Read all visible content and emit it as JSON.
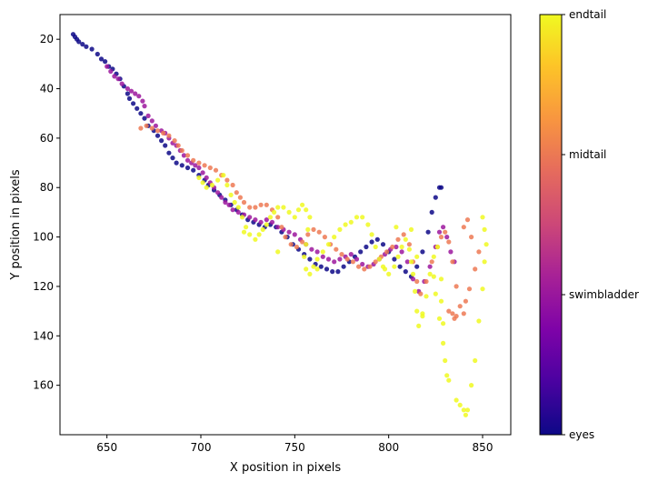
{
  "chart_data": {
    "type": "scatter",
    "title": "",
    "xlabel": "X position in pixels",
    "ylabel": "Y position in pixels",
    "xlim": [
      625,
      865
    ],
    "ylim": [
      180,
      10
    ],
    "y_inverted": true,
    "grid": false,
    "x_ticks": [
      650,
      700,
      750,
      800,
      850
    ],
    "y_ticks": [
      20,
      40,
      60,
      80,
      100,
      120,
      140,
      160
    ],
    "colormap": "plasma",
    "colorbar": {
      "labels": [
        "eyes",
        "swimbladder",
        "midtail",
        "endtail"
      ],
      "values": [
        0,
        1,
        2,
        3
      ]
    },
    "series": [
      {
        "name": "eyes",
        "color": "#0d0887",
        "points": [
          [
            632,
            18
          ],
          [
            633,
            19
          ],
          [
            634,
            20
          ],
          [
            635,
            21
          ],
          [
            637,
            22
          ],
          [
            639,
            23
          ],
          [
            642,
            24
          ],
          [
            645,
            26
          ],
          [
            647,
            28
          ],
          [
            649,
            29
          ],
          [
            651,
            31
          ],
          [
            653,
            32
          ],
          [
            655,
            34
          ],
          [
            657,
            36
          ],
          [
            659,
            39
          ],
          [
            661,
            42
          ],
          [
            662,
            44
          ],
          [
            664,
            46
          ],
          [
            666,
            48
          ],
          [
            668,
            50
          ],
          [
            670,
            52
          ],
          [
            672,
            55
          ],
          [
            675,
            57
          ],
          [
            677,
            59
          ],
          [
            679,
            61
          ],
          [
            681,
            63
          ],
          [
            683,
            66
          ],
          [
            685,
            68
          ],
          [
            687,
            70
          ],
          [
            690,
            71
          ],
          [
            693,
            72
          ],
          [
            696,
            73
          ],
          [
            699,
            75
          ],
          [
            702,
            77
          ],
          [
            704,
            79
          ],
          [
            707,
            81
          ],
          [
            710,
            83
          ],
          [
            713,
            85
          ],
          [
            716,
            87
          ],
          [
            719,
            89
          ],
          [
            722,
            91
          ],
          [
            725,
            93
          ],
          [
            728,
            94
          ],
          [
            731,
            95
          ],
          [
            734,
            96
          ],
          [
            737,
            95
          ],
          [
            740,
            96
          ],
          [
            743,
            98
          ],
          [
            746,
            100
          ],
          [
            749,
            103
          ],
          [
            752,
            105
          ],
          [
            755,
            107
          ],
          [
            758,
            109
          ],
          [
            761,
            111
          ],
          [
            764,
            112
          ],
          [
            767,
            113
          ],
          [
            770,
            114
          ],
          [
            773,
            114
          ],
          [
            776,
            112
          ],
          [
            779,
            110
          ],
          [
            782,
            108
          ],
          [
            785,
            106
          ],
          [
            788,
            104
          ],
          [
            791,
            102
          ],
          [
            794,
            101
          ],
          [
            797,
            103
          ],
          [
            800,
            106
          ],
          [
            803,
            109
          ],
          [
            806,
            112
          ],
          [
            809,
            114
          ],
          [
            812,
            116
          ],
          [
            815,
            112
          ],
          [
            818,
            106
          ],
          [
            821,
            98
          ],
          [
            823,
            90
          ],
          [
            825,
            84
          ],
          [
            827,
            80
          ],
          [
            828,
            80
          ]
        ]
      },
      {
        "name": "swimbladder",
        "color": "#9c179e",
        "points": [
          [
            650,
            31
          ],
          [
            652,
            33
          ],
          [
            654,
            35
          ],
          [
            656,
            36
          ],
          [
            658,
            38
          ],
          [
            661,
            40
          ],
          [
            663,
            41
          ],
          [
            665,
            42
          ],
          [
            667,
            43
          ],
          [
            669,
            45
          ],
          [
            670,
            47
          ],
          [
            672,
            51
          ],
          [
            674,
            53
          ],
          [
            676,
            55
          ],
          [
            679,
            57
          ],
          [
            681,
            58
          ],
          [
            683,
            60
          ],
          [
            685,
            62
          ],
          [
            687,
            63
          ],
          [
            689,
            65
          ],
          [
            691,
            67
          ],
          [
            693,
            69
          ],
          [
            695,
            70
          ],
          [
            697,
            71
          ],
          [
            699,
            72
          ],
          [
            701,
            74
          ],
          [
            703,
            76
          ],
          [
            705,
            78
          ],
          [
            707,
            80
          ],
          [
            709,
            82
          ],
          [
            711,
            84
          ],
          [
            713,
            86
          ],
          [
            715,
            87
          ],
          [
            717,
            89
          ],
          [
            720,
            90
          ],
          [
            723,
            91
          ],
          [
            726,
            92
          ],
          [
            729,
            93
          ],
          [
            732,
            94
          ],
          [
            735,
            93
          ],
          [
            738,
            94
          ],
          [
            741,
            96
          ],
          [
            744,
            97
          ],
          [
            747,
            98
          ],
          [
            750,
            99
          ],
          [
            753,
            101
          ],
          [
            756,
            103
          ],
          [
            759,
            105
          ],
          [
            762,
            106
          ],
          [
            765,
            108
          ],
          [
            768,
            109
          ],
          [
            771,
            110
          ],
          [
            774,
            109
          ],
          [
            777,
            108
          ],
          [
            780,
            107
          ],
          [
            783,
            109
          ],
          [
            786,
            111
          ],
          [
            789,
            112
          ],
          [
            792,
            111
          ],
          [
            795,
            109
          ],
          [
            798,
            107
          ],
          [
            801,
            105
          ],
          [
            804,
            104
          ],
          [
            807,
            106
          ],
          [
            810,
            110
          ],
          [
            813,
            117
          ],
          [
            816,
            122
          ],
          [
            819,
            118
          ],
          [
            822,
            112
          ],
          [
            825,
            104
          ],
          [
            827,
            98
          ],
          [
            829,
            96
          ],
          [
            831,
            100
          ],
          [
            833,
            106
          ],
          [
            835,
            110
          ]
        ]
      },
      {
        "name": "midtail",
        "color": "#ed7953",
        "points": [
          [
            668,
            56
          ],
          [
            671,
            55
          ],
          [
            674,
            56
          ],
          [
            677,
            57
          ],
          [
            680,
            58
          ],
          [
            683,
            59
          ],
          [
            686,
            61
          ],
          [
            688,
            63
          ],
          [
            690,
            65
          ],
          [
            693,
            67
          ],
          [
            696,
            69
          ],
          [
            699,
            70
          ],
          [
            702,
            71
          ],
          [
            705,
            72
          ],
          [
            708,
            73
          ],
          [
            711,
            75
          ],
          [
            714,
            77
          ],
          [
            717,
            79
          ],
          [
            719,
            82
          ],
          [
            721,
            84
          ],
          [
            723,
            86
          ],
          [
            726,
            88
          ],
          [
            729,
            88
          ],
          [
            732,
            87
          ],
          [
            735,
            87
          ],
          [
            738,
            89
          ],
          [
            741,
            92
          ],
          [
            743,
            96
          ],
          [
            745,
            100
          ],
          [
            748,
            103
          ],
          [
            751,
            104
          ],
          [
            754,
            102
          ],
          [
            757,
            99
          ],
          [
            760,
            97
          ],
          [
            763,
            98
          ],
          [
            766,
            100
          ],
          [
            769,
            103
          ],
          [
            772,
            105
          ],
          [
            775,
            107
          ],
          [
            778,
            109
          ],
          [
            781,
            110
          ],
          [
            784,
            112
          ],
          [
            787,
            113
          ],
          [
            790,
            112
          ],
          [
            793,
            110
          ],
          [
            796,
            108
          ],
          [
            799,
            106
          ],
          [
            802,
            104
          ],
          [
            805,
            101
          ],
          [
            808,
            99
          ],
          [
            811,
            103
          ],
          [
            813,
            110
          ],
          [
            815,
            118
          ],
          [
            817,
            123
          ],
          [
            820,
            118
          ],
          [
            823,
            110
          ],
          [
            826,
            104
          ],
          [
            828,
            100
          ],
          [
            830,
            98
          ],
          [
            832,
            102
          ],
          [
            834,
            110
          ],
          [
            836,
            120
          ],
          [
            838,
            128
          ],
          [
            840,
            131
          ],
          [
            836,
            132
          ],
          [
            834,
            131
          ],
          [
            832,
            130
          ],
          [
            835,
            133
          ],
          [
            841,
            126
          ],
          [
            843,
            121
          ],
          [
            846,
            113
          ],
          [
            848,
            106
          ],
          [
            844,
            100
          ],
          [
            840,
            96
          ],
          [
            842,
            93
          ]
        ]
      },
      {
        "name": "endtail",
        "color": "#f0f921",
        "points": [
          [
            699,
            76
          ],
          [
            701,
            78
          ],
          [
            703,
            80
          ],
          [
            706,
            79
          ],
          [
            709,
            77
          ],
          [
            712,
            75
          ],
          [
            714,
            79
          ],
          [
            716,
            83
          ],
          [
            718,
            86
          ],
          [
            720,
            88
          ],
          [
            722,
            92
          ],
          [
            724,
            96
          ],
          [
            726,
            99
          ],
          [
            729,
            101
          ],
          [
            731,
            99
          ],
          [
            733,
            97
          ],
          [
            735,
            95
          ],
          [
            737,
            92
          ],
          [
            739,
            90
          ],
          [
            741,
            88
          ],
          [
            744,
            88
          ],
          [
            747,
            90
          ],
          [
            750,
            92
          ],
          [
            752,
            89
          ],
          [
            754,
            87
          ],
          [
            756,
            89
          ],
          [
            758,
            92
          ],
          [
            757,
            97
          ],
          [
            756,
            103
          ],
          [
            755,
            108
          ],
          [
            756,
            113
          ],
          [
            758,
            115
          ],
          [
            760,
            112
          ],
          [
            762,
            109
          ],
          [
            765,
            106
          ],
          [
            768,
            103
          ],
          [
            771,
            100
          ],
          [
            774,
            97
          ],
          [
            777,
            95
          ],
          [
            780,
            94
          ],
          [
            783,
            92
          ],
          [
            786,
            92
          ],
          [
            789,
            95
          ],
          [
            791,
            99
          ],
          [
            793,
            104
          ],
          [
            795,
            109
          ],
          [
            798,
            113
          ],
          [
            800,
            115
          ],
          [
            803,
            112
          ],
          [
            805,
            108
          ],
          [
            807,
            104
          ],
          [
            809,
            101
          ],
          [
            811,
            105
          ],
          [
            812,
            110
          ],
          [
            813,
            115
          ],
          [
            814,
            122
          ],
          [
            815,
            130
          ],
          [
            816,
            136
          ],
          [
            818,
            131
          ],
          [
            820,
            124
          ],
          [
            822,
            115
          ],
          [
            824,
            108
          ],
          [
            826,
            104
          ],
          [
            828,
            117
          ],
          [
            828,
            126
          ],
          [
            829,
            135
          ],
          [
            829,
            143
          ],
          [
            830,
            150
          ],
          [
            831,
            156
          ],
          [
            832,
            158
          ],
          [
            836,
            166
          ],
          [
            838,
            168
          ],
          [
            840,
            170
          ],
          [
            841,
            172
          ],
          [
            842,
            170
          ],
          [
            844,
            160
          ],
          [
            846,
            150
          ],
          [
            848,
            134
          ],
          [
            850,
            121
          ],
          [
            851,
            110
          ],
          [
            852,
            103
          ],
          [
            851,
            97
          ],
          [
            850,
            92
          ],
          [
            827,
            133
          ],
          [
            825,
            123
          ],
          [
            824,
            116
          ],
          [
            818,
            132
          ],
          [
            815,
            108
          ],
          [
            812,
            97
          ],
          [
            804,
            96
          ],
          [
            797,
            112
          ],
          [
            762,
            113
          ],
          [
            741,
            106
          ],
          [
            723,
            98
          ]
        ]
      }
    ]
  }
}
